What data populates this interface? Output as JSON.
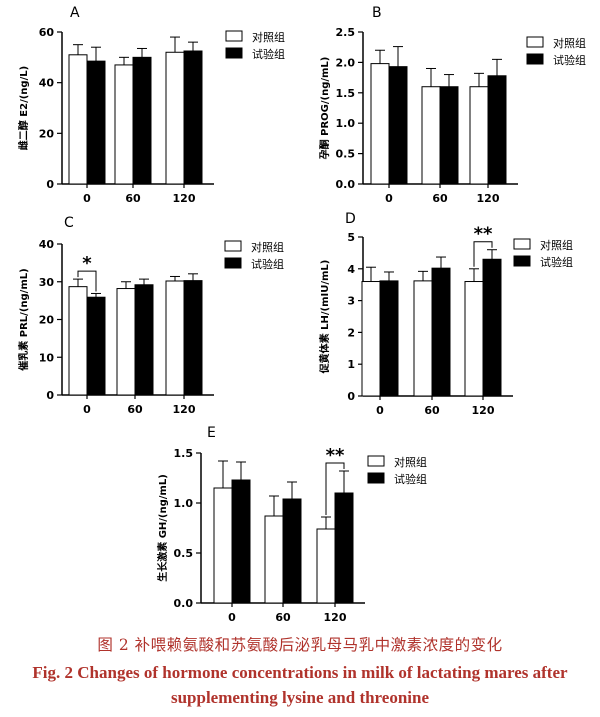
{
  "caption": {
    "cn": "图 2    补喂赖氨酸和苏氨酸后泌乳母马乳中激素浓度的变化",
    "en": "Fig. 2    Changes of hormone concentrations in milk of lactating mares after supplementing lysine and threonine"
  },
  "chart_data": [
    {
      "type": "bar",
      "panel": "A",
      "categories": [
        "0",
        "60",
        "120"
      ],
      "ylabel": "雌二醇 E2/(ng/L)",
      "ylim": [
        0,
        60
      ],
      "yticks": [
        "0",
        "20",
        "40",
        "60"
      ],
      "legend": "top-right",
      "series": [
        {
          "name": "对照组",
          "values": [
            51,
            47,
            52
          ],
          "errors": [
            4,
            3,
            6
          ]
        },
        {
          "name": "试验组",
          "values": [
            48.5,
            50,
            52.5
          ],
          "errors": [
            5.5,
            3.5,
            3.5
          ]
        }
      ],
      "significance": []
    },
    {
      "type": "bar",
      "panel": "B",
      "categories": [
        "0",
        "60",
        "120"
      ],
      "ylabel": "孕酮 PROG/(ng/mL)",
      "ylim": [
        0,
        2.5
      ],
      "yticks": [
        "0.0",
        "0.5",
        "1.0",
        "1.5",
        "2.0",
        "2.5"
      ],
      "legend": "top-right",
      "series": [
        {
          "name": "对照组",
          "values": [
            1.98,
            1.6,
            1.6
          ],
          "errors": [
            0.22,
            0.3,
            0.22
          ]
        },
        {
          "name": "试验组",
          "values": [
            1.93,
            1.6,
            1.78
          ],
          "errors": [
            0.33,
            0.2,
            0.27
          ]
        }
      ],
      "significance": []
    },
    {
      "type": "bar",
      "panel": "C",
      "categories": [
        "0",
        "60",
        "120"
      ],
      "ylabel": "催乳素 PRL/(ng/mL)",
      "ylim": [
        0,
        40
      ],
      "yticks": [
        "0",
        "10",
        "20",
        "30",
        "40"
      ],
      "legend": "top-right",
      "series": [
        {
          "name": "对照组",
          "values": [
            28.7,
            28.2,
            30.2
          ],
          "errors": [
            2.0,
            1.8,
            1.2
          ]
        },
        {
          "name": "试验组",
          "values": [
            25.9,
            29.2,
            30.3
          ],
          "errors": [
            1.0,
            1.5,
            1.8
          ]
        }
      ],
      "significance": [
        {
          "category": "0",
          "label": "*"
        }
      ]
    },
    {
      "type": "bar",
      "panel": "D",
      "categories": [
        "0",
        "60",
        "120"
      ],
      "ylabel": "促黄体素 LH/(mIU/mL)",
      "ylim": [
        0,
        5
      ],
      "yticks": [
        "0",
        "1",
        "2",
        "3",
        "4",
        "5"
      ],
      "legend": "top-right",
      "series": [
        {
          "name": "对照组",
          "values": [
            3.6,
            3.62,
            3.6
          ],
          "errors": [
            0.45,
            0.3,
            0.4
          ]
        },
        {
          "name": "试验组",
          "values": [
            3.62,
            4.02,
            4.3
          ],
          "errors": [
            0.28,
            0.35,
            0.3
          ]
        }
      ],
      "significance": [
        {
          "category": "120",
          "label": "**"
        }
      ]
    },
    {
      "type": "bar",
      "panel": "E",
      "categories": [
        "0",
        "60",
        "120"
      ],
      "ylabel": "生长激素 GH/(ng/mL)",
      "ylim": [
        0,
        1.5
      ],
      "yticks": [
        "0.0",
        "0.5",
        "1.0",
        "1.5"
      ],
      "legend": "top-right",
      "series": [
        {
          "name": "对照组",
          "values": [
            1.15,
            0.87,
            0.74
          ],
          "errors": [
            0.27,
            0.2,
            0.12
          ]
        },
        {
          "name": "试验组",
          "values": [
            1.23,
            1.04,
            1.1
          ],
          "errors": [
            0.18,
            0.17,
            0.22
          ]
        }
      ],
      "significance": [
        {
          "category": "120",
          "label": "**"
        }
      ]
    }
  ]
}
